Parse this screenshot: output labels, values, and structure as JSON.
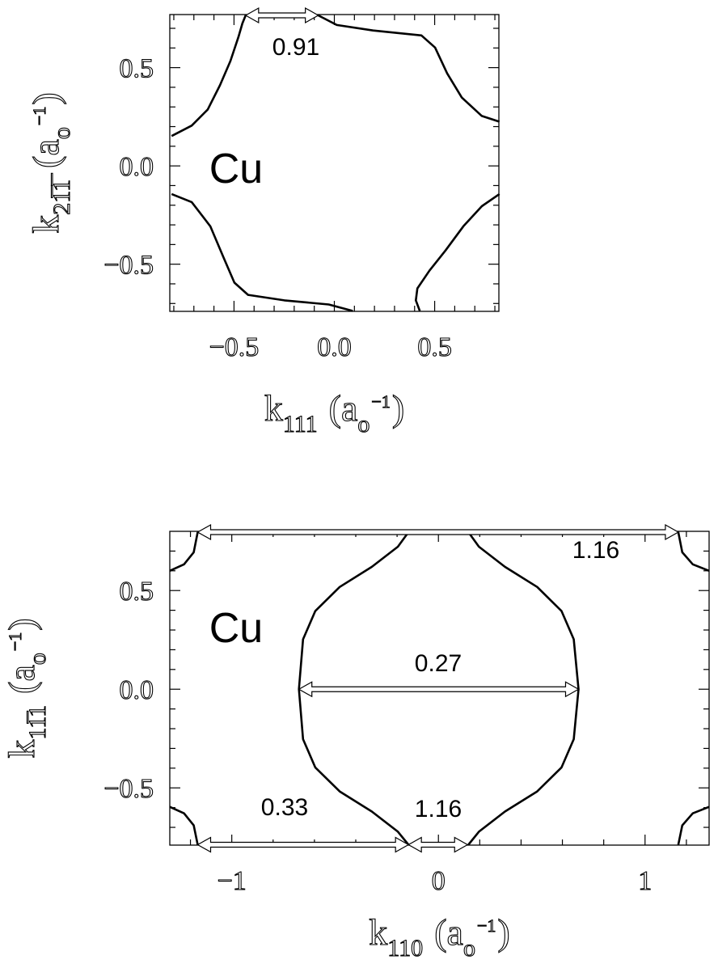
{
  "chart_data": [
    {
      "type": "line",
      "xlabel": {
        "main": "k",
        "sub": "111",
        "unit": "(a",
        "unit_sub": "o",
        "unit_sup": "−1",
        "close": ")"
      },
      "ylabel": {
        "main": "k",
        "sub": "21̅1̅",
        "unit": "(a",
        "unit_sub": "o",
        "unit_sup": "−1",
        "close": ")"
      },
      "xlim": [
        -0.82,
        0.82
      ],
      "ylim": [
        -0.74,
        0.77
      ],
      "xticks": [
        {
          "value": -0.5,
          "label": "−0.5"
        },
        {
          "value": 0,
          "label": "0.0"
        },
        0.5
      ],
      "yticks": [
        {
          "value": -0.5,
          "label": "−0.5"
        },
        {
          "value": 0,
          "label": "0.0"
        },
        0.5
      ],
      "xminor": [
        -0.8,
        -0.7,
        -0.6,
        -0.4,
        -0.3,
        -0.2,
        -0.1,
        0.1,
        0.2,
        0.3,
        0.4,
        0.6,
        0.7,
        0.8
      ],
      "yminor": [
        -0.7,
        -0.6,
        -0.4,
        -0.3,
        -0.2,
        -0.1,
        0.1,
        0.2,
        0.3,
        0.4,
        0.6,
        0.7
      ],
      "series": [
        {
          "color": "#000000",
          "x": [
            -0.811,
            -0.711,
            -0.631,
            -0.57,
            -0.518,
            -0.478,
            -0.458,
            -0.442
          ],
          "values": [
            0.152,
            0.205,
            0.287,
            0.41,
            0.533,
            0.656,
            0.725,
            0.766
          ]
        },
        {
          "color": "#000000",
          "x": [
            -0.08,
            0.012,
            0.193,
            0.434,
            0.502,
            0.562,
            0.635,
            0.735,
            0.823
          ],
          "values": [
            0.766,
            0.717,
            0.689,
            0.664,
            0.602,
            0.471,
            0.348,
            0.254,
            0.225
          ]
        },
        {
          "color": "#000000",
          "x": [
            -0.811,
            -0.711,
            -0.618,
            -0.55,
            -0.498,
            -0.43,
            -0.249,
            -0.028,
            0.092
          ],
          "values": [
            -0.143,
            -0.184,
            -0.307,
            -0.471,
            -0.594,
            -0.656,
            -0.684,
            -0.705,
            -0.738
          ]
        },
        {
          "color": "#000000",
          "x": [
            0.823,
            0.735,
            0.643,
            0.554,
            0.474,
            0.414,
            0.406,
            0.426
          ],
          "values": [
            -0.143,
            -0.205,
            -0.307,
            -0.43,
            -0.533,
            -0.623,
            -0.684,
            -0.738
          ]
        }
      ],
      "annotations": [
        {
          "text": "Cu"
        }
      ],
      "arrows": [
        {
          "label": "0.91",
          "x1": -0.442,
          "x2": -0.08,
          "y": 0.766
        }
      ]
    },
    {
      "type": "line",
      "xlabel": {
        "main": "k",
        "sub": "110",
        "unit": "(a",
        "unit_sub": "o",
        "unit_sup": "−1",
        "close": ")"
      },
      "ylabel": {
        "main": "k",
        "sub": "11̅1",
        "unit": "(a",
        "unit_sub": "o",
        "unit_sup": "−1",
        "close": ")"
      },
      "xlim": [
        -1.3,
        1.31
      ],
      "ylim": [
        -0.79,
        0.8
      ],
      "xticks": [
        {
          "value": -1,
          "label": "−1"
        },
        0,
        1
      ],
      "yticks": [
        {
          "value": -0.5,
          "label": "−0.5"
        },
        {
          "value": 0,
          "label": "0.0"
        },
        0.5
      ],
      "xminor": [
        -1.2,
        -0.8,
        -0.6,
        -0.4,
        -0.2,
        0.2,
        0.4,
        0.6,
        0.8,
        1.2
      ],
      "yminor": [
        -0.7,
        -0.6,
        -0.4,
        -0.3,
        -0.2,
        -0.1,
        0.1,
        0.2,
        0.3,
        0.4,
        0.6,
        0.7
      ],
      "series": [
        {
          "color": "#000000",
          "x": [
            -0.145,
            -0.196,
            -0.322,
            -0.478,
            -0.596,
            -0.655,
            -0.675,
            -0.655,
            -0.596,
            -0.478,
            -0.322,
            -0.196,
            -0.145
          ],
          "values": [
            0.796,
            0.722,
            0.62,
            0.518,
            0.396,
            0.253,
            0,
            -0.253,
            -0.396,
            -0.518,
            -0.62,
            -0.722,
            -0.788
          ]
        },
        {
          "color": "#000000",
          "x": [
            0.145,
            0.196,
            0.322,
            0.478,
            0.596,
            0.655,
            0.678,
            0.655,
            0.596,
            0.478,
            0.322,
            0.196,
            0.145
          ],
          "values": [
            0.796,
            0.722,
            0.62,
            0.518,
            0.396,
            0.253,
            0,
            -0.253,
            -0.396,
            -0.518,
            -0.62,
            -0.722,
            -0.788
          ]
        },
        {
          "color": "#000000",
          "x": [
            -1.3,
            -1.231,
            -1.184,
            -1.165
          ],
          "values": [
            0.6,
            0.633,
            0.694,
            0.796
          ]
        },
        {
          "color": "#000000",
          "x": [
            -1.3,
            -1.231,
            -1.184,
            -1.165
          ],
          "values": [
            -0.596,
            -0.629,
            -0.69,
            -0.788
          ]
        },
        {
          "color": "#000000",
          "x": [
            1.31,
            1.231,
            1.18,
            1.161
          ],
          "values": [
            0.6,
            0.633,
            0.694,
            0.796
          ]
        },
        {
          "color": "#000000",
          "x": [
            1.31,
            1.231,
            1.18,
            1.161
          ],
          "values": [
            -0.596,
            -0.629,
            -0.69,
            -0.788
          ]
        }
      ],
      "annotations": [
        {
          "text": "Cu"
        }
      ],
      "arrows": [
        {
          "label": "1.16",
          "x1": -1.165,
          "x2": 1.161,
          "y": 0.796
        },
        {
          "label": "0.27",
          "x1": -0.675,
          "x2": 0.678,
          "y": 0
        },
        {
          "label": "0.33",
          "x1": -1.165,
          "x2": -0.145,
          "y": -0.788
        },
        {
          "label": "1.16",
          "x1": -0.145,
          "x2": 0.141,
          "y": -0.788
        }
      ]
    }
  ]
}
